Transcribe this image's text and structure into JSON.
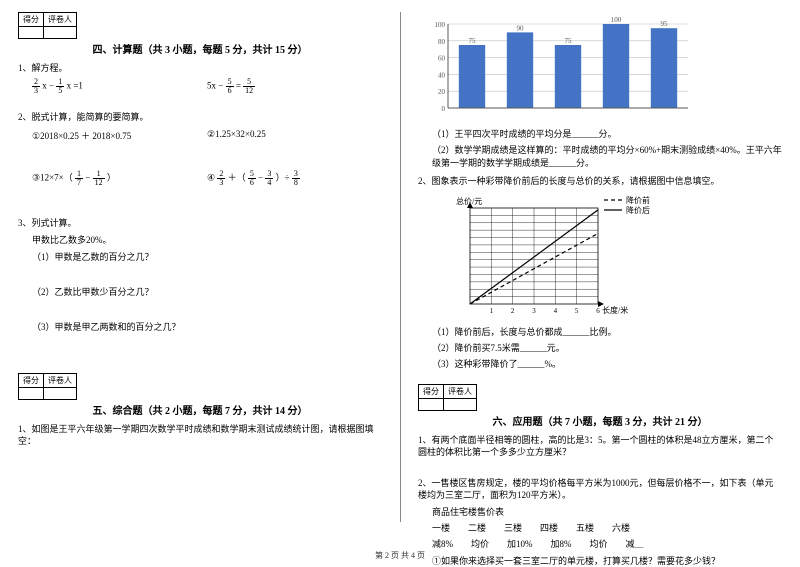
{
  "footer": "第 2 页  共 4 页",
  "score_table": {
    "cell1": "得分",
    "cell2": "评卷人"
  },
  "sections": {
    "four_title": "四、计算题（共 3 小题，每题 5 分，共计 15 分）",
    "five_title": "五、综合题（共 2 小题，每题 7 分，共计 14 分）",
    "six_title": "六、应用题（共 7 小题，每题 3 分，共计 21 分）"
  },
  "q4_1": {
    "stem": "1、解方程。",
    "eq1a": {
      "f1n": "2",
      "f1d": "3",
      "mid": " x − ",
      "f2n": "1",
      "f2d": "5",
      "tail": " x =1"
    },
    "eq1b": {
      "pre": "5x − ",
      "f1n": "5",
      "f1d": "6",
      "mid": " = ",
      "f2n": "5",
      "f2d": "12"
    }
  },
  "q4_2": {
    "stem": "2、脱式计算，能简算的要简算。",
    "a": "①2018×0.25 ＋ 2018×0.75",
    "b": "②1.25×32×0.25",
    "c": {
      "pre": "③12×7×（",
      "f1n": "1",
      "f1d": "7",
      "mid": " − ",
      "f2n": "1",
      "f2d": "12",
      "tail": "）"
    },
    "d": {
      "pre": "④",
      "f1n": "2",
      "f1d": "3",
      "mid1": " ＋（",
      "f2n": "5",
      "f2d": "6",
      "mid2": " − ",
      "f3n": "3",
      "f3d": "4",
      "mid3": "）÷ ",
      "f4n": "3",
      "f4d": "8"
    }
  },
  "q4_3": {
    "stem": "3、列式计算。",
    "line": "甲数比乙数多20%。",
    "a": "（1）甲数是乙数的百分之几？",
    "b": "（2）乙数比甲数少百分之几？",
    "c": "（3）甲数是甲乙两数和的百分之几？"
  },
  "q5_1": "1、如图是王平六年级第一学期四次数学平时成绩和数学期末测试成绩统计图，请根据图填空：",
  "bar_chart": {
    "y_max": 100,
    "y_step": 20,
    "y_ticks": [
      "0",
      "20",
      "40",
      "60",
      "80",
      "100"
    ],
    "values": [
      75,
      90,
      75,
      100,
      95
    ],
    "labels": [
      "75",
      "90",
      "75",
      "100",
      "95"
    ],
    "bar_color": "#4472c4",
    "grid_color": "#bfbfbf",
    "axis_color": "#595959",
    "bg": "#ffffff"
  },
  "q5_1_subs": {
    "a": "（1）王平四次平时成绩的平均分是______分。",
    "b": "（2）数学学期成绩是这样算的：平时成绩的平均分×60%+期末测验成绩×40%。王平六年级第一学期的数学学期成绩是______分。"
  },
  "q5_2": {
    "stem": "2、图象表示一种彩带降价前后的长度与总价的关系，请根据图中信息填空。",
    "legend_before": "降价前",
    "legend_after": "降价后",
    "y_label": "总价/元",
    "x_label": "长度/米",
    "x_ticks": [
      "1",
      "2",
      "3",
      "4",
      "5",
      "6"
    ],
    "y_max": 13,
    "line_before_slope": 2.0,
    "line_after_slope_ratio": 0.75,
    "axis_color": "#000000",
    "grid_color": "#000000",
    "a": "（1）降价前后，长度与总价都成______比例。",
    "b": "（2）降价前买7.5米需______元。",
    "c": "（3）这种彩带降价了______%。"
  },
  "q6_1": "1、有两个底面半径相等的圆柱，高的比是3：5。第一个圆柱的体积是48立方厘米，第二个圆柱的体积比第一个多多少立方厘米？",
  "q6_2": {
    "stem": "2、一售楼区售房规定，楼的平均价格每平方米为1000元，但每层价格不一，如下表（单元楼均为三室二厅，面积为120平方米）。",
    "tbl_title": "商品住宅楼售价表",
    "headers": [
      "一楼",
      "二楼",
      "三楼",
      "四楼",
      "五楼",
      "六楼"
    ],
    "rows": [
      "减8%",
      "均价",
      "加10%",
      "加8%",
      "均价",
      "减＿"
    ],
    "q": "①如果你来选择买一套三室二厅的单元楼，打算买几楼？需要花多少钱？"
  }
}
